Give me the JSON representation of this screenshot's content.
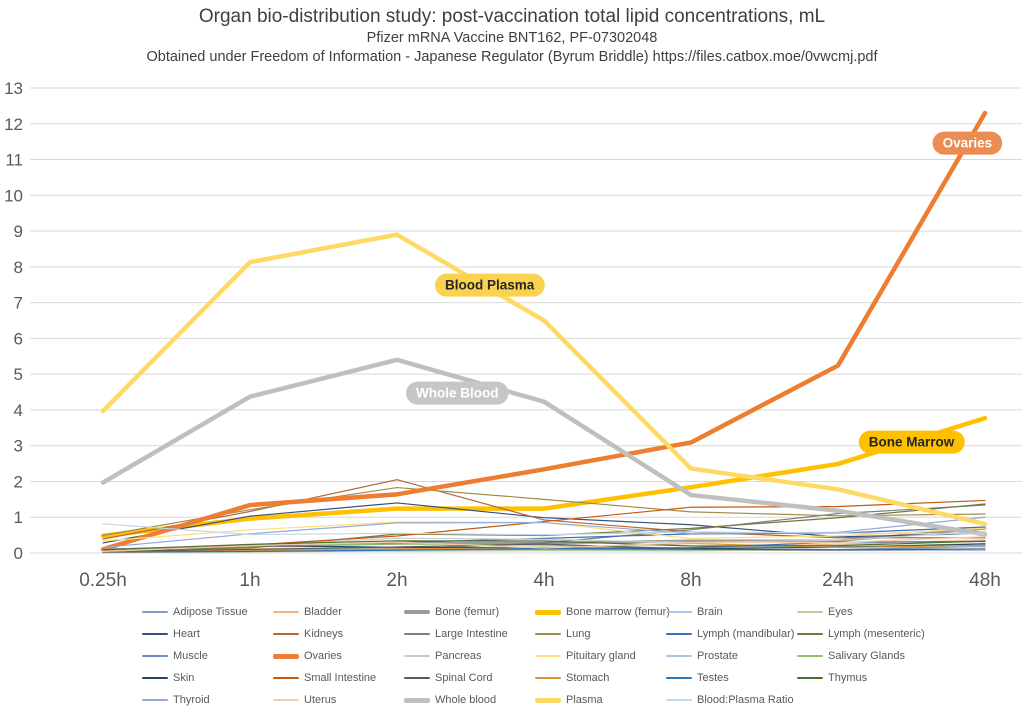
{
  "header": {
    "title": "Organ bio-distribution study: post-vaccination total lipid concentrations, mL",
    "subtitle": "Pfizer mRNA Vaccine BNT162, PF-07302048",
    "source_line": "Obtained under Freedom of Information - Japanese Regulator (Byrum Briddle) https://files.catbox.moe/0vwcmj.pdf"
  },
  "chart_data": {
    "type": "line",
    "title": "Organ bio-distribution study: post-vaccination total lipid concentrations, mL",
    "xlabel": "",
    "ylabel": "",
    "x_categories": [
      "0.25h",
      "1h",
      "2h",
      "4h",
      "8h",
      "24h",
      "48h"
    ],
    "ylim": [
      0,
      13
    ],
    "y_ticks": [
      0,
      1,
      2,
      3,
      4,
      5,
      6,
      7,
      8,
      9,
      10,
      11,
      12,
      13
    ],
    "grid": true,
    "legend_position": "bottom",
    "axis_text_color": "#595959",
    "grid_color": "#d9d9d9",
    "series": [
      {
        "name": "Adipose Tissue",
        "color": "#7e9dc8",
        "width": 1.2,
        "values": [
          0.057,
          0.1,
          0.126,
          0.128,
          0.093,
          0.084,
          0.181
        ]
      },
      {
        "name": "Bladder",
        "color": "#f2b27e",
        "width": 1.2,
        "values": [
          0.041,
          0.13,
          0.146,
          0.167,
          0.148,
          0.247,
          0.365
        ]
      },
      {
        "name": "Bone (femur)",
        "color": "#9b9b9b",
        "width": 2.6,
        "values": [
          0.091,
          0.195,
          0.266,
          0.276,
          0.34,
          0.342,
          0.687
        ]
      },
      {
        "name": "Bone marrow (femur)",
        "color": "#ffc000",
        "width": 4.5,
        "values": [
          0.479,
          0.96,
          1.24,
          1.24,
          1.84,
          2.49,
          3.77
        ]
      },
      {
        "name": "Brain",
        "color": "#a9c6e8",
        "width": 1.2,
        "values": [
          0.045,
          0.1,
          0.138,
          0.115,
          0.073,
          0.069,
          0.068
        ]
      },
      {
        "name": "Eyes",
        "color": "#b5cf9b",
        "width": 1.2,
        "values": [
          0.01,
          0.035,
          0.052,
          0.067,
          0.059,
          0.091,
          0.112
        ]
      },
      {
        "name": "Heart",
        "color": "#33527e",
        "width": 1.2,
        "values": [
          0.282,
          1.03,
          1.4,
          0.987,
          0.79,
          0.451,
          0.546
        ]
      },
      {
        "name": "Kidneys",
        "color": "#b4683a",
        "width": 1.2,
        "values": [
          0.391,
          1.16,
          2.05,
          0.924,
          0.59,
          0.426,
          0.425
        ]
      },
      {
        "name": "Large Intestine",
        "color": "#7f7f7f",
        "width": 1.2,
        "values": [
          0.013,
          0.048,
          0.093,
          0.287,
          0.649,
          1.1,
          1.34
        ]
      },
      {
        "name": "Lung",
        "color": "#a18b4b",
        "width": 1.2,
        "values": [
          0.492,
          1.21,
          1.83,
          1.5,
          1.15,
          1.04,
          1.09
        ]
      },
      {
        "name": "Lymph (mandibular)",
        "color": "#3e6fb2",
        "width": 1.2,
        "values": [
          0.064,
          0.189,
          0.29,
          0.408,
          0.534,
          0.554,
          0.727
        ]
      },
      {
        "name": "Lymph (mesenteric)",
        "color": "#70793f",
        "width": 1.2,
        "values": [
          0.05,
          0.146,
          0.53,
          0.489,
          0.689,
          0.985,
          1.37
        ]
      },
      {
        "name": "Muscle",
        "color": "#6e8dc0",
        "width": 1.2,
        "values": [
          0.021,
          0.061,
          0.084,
          0.103,
          0.096,
          0.095,
          0.192
        ]
      },
      {
        "name": "Ovaries",
        "color": "#ed7d31",
        "width": 4.5,
        "values": [
          0.104,
          1.34,
          1.64,
          2.34,
          3.09,
          5.24,
          12.3
        ]
      },
      {
        "name": "Pancreas",
        "color": "#cacaca",
        "width": 1.2,
        "values": [
          0.081,
          0.207,
          0.414,
          0.38,
          0.294,
          0.358,
          0.599
        ]
      },
      {
        "name": "Pituitary gland",
        "color": "#ffde7f",
        "width": 1.2,
        "values": [
          0.339,
          0.645,
          0.868,
          0.854,
          0.405,
          0.478,
          0.694
        ]
      },
      {
        "name": "Prostate",
        "color": "#a7c5e4",
        "width": 1.2,
        "values": [
          0.061,
          0.091,
          0.128,
          0.157,
          0.15,
          0.183,
          0.17
        ]
      },
      {
        "name": "Salivary Glands",
        "color": "#8fbf6f",
        "width": 1.2,
        "values": [
          0.084,
          0.193,
          0.255,
          0.22,
          0.135,
          0.17,
          0.264
        ]
      },
      {
        "name": "Skin",
        "color": "#24466b",
        "width": 1.2,
        "values": [
          0.013,
          0.208,
          0.159,
          0.145,
          0.119,
          0.157,
          0.253
        ]
      },
      {
        "name": "Small Intestine",
        "color": "#c55a11",
        "width": 1.2,
        "values": [
          0.03,
          0.221,
          0.476,
          0.879,
          1.28,
          1.3,
          1.47
        ]
      },
      {
        "name": "Spinal Cord",
        "color": "#5b5b5b",
        "width": 1.2,
        "values": [
          0.043,
          0.097,
          0.169,
          0.25,
          0.106,
          0.085,
          0.112
        ]
      },
      {
        "name": "Stomach",
        "color": "#db9333",
        "width": 1.2,
        "values": [
          0.017,
          0.065,
          0.115,
          0.144,
          0.268,
          0.152,
          0.215
        ]
      },
      {
        "name": "Testes",
        "color": "#2e75b6",
        "width": 1.2,
        "values": [
          0.031,
          0.042,
          0.079,
          0.129,
          0.146,
          0.304,
          0.32
        ]
      },
      {
        "name": "Thymus",
        "color": "#50702f",
        "width": 1.2,
        "values": [
          0.088,
          0.243,
          0.34,
          0.335,
          0.196,
          0.207,
          0.331
        ]
      },
      {
        "name": "Thyroid",
        "color": "#92abd8",
        "width": 1.2,
        "values": [
          0.155,
          0.536,
          0.842,
          0.851,
          0.544,
          0.578,
          1.0
        ]
      },
      {
        "name": "Uterus",
        "color": "#f7cba9",
        "width": 1.2,
        "values": [
          0.043,
          0.203,
          0.305,
          0.14,
          0.287,
          0.289,
          0.456
        ]
      },
      {
        "name": "Whole blood",
        "color": "#bfbfbf",
        "width": 4.5,
        "values": [
          1.97,
          4.37,
          5.4,
          4.23,
          1.62,
          1.18,
          0.52
        ]
      },
      {
        "name": "Plasma",
        "color": "#ffd965",
        "width": 4.5,
        "values": [
          3.97,
          8.13,
          8.9,
          6.5,
          2.36,
          1.78,
          0.81
        ]
      },
      {
        "name": "Blood:Plasma Ratio",
        "color": "#c3d6ea",
        "width": 1.2,
        "values": [
          0.815,
          0.515,
          0.55,
          0.51,
          0.59,
          0.555,
          0.53
        ]
      }
    ],
    "annotations": [
      {
        "label": "Blood Plasma",
        "x_index": 2.63,
        "value": 7.49,
        "bg": "#fbd24f",
        "text_color": "#262626"
      },
      {
        "label": "Whole Blood",
        "x_index": 2.41,
        "value": 4.47,
        "bg": "#c6c6c6",
        "text_color": "#ffffff"
      },
      {
        "label": "Bone Marrow",
        "x_index": 5.5,
        "value": 3.1,
        "bg": "#ffc000",
        "text_color": "#262626"
      },
      {
        "label": "Ovaries",
        "x_index": 5.88,
        "value": 11.46,
        "bg": "#ec8b52",
        "text_color": "#ffffff"
      }
    ]
  }
}
